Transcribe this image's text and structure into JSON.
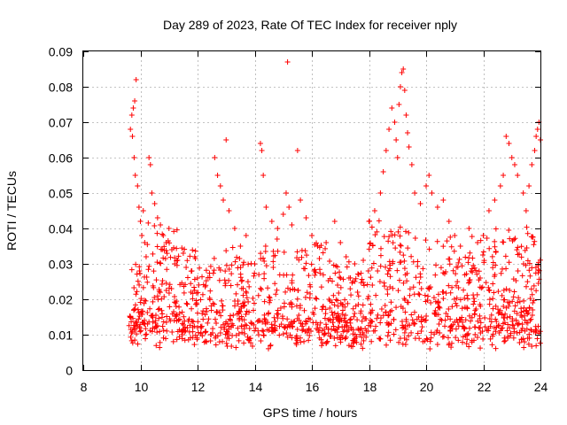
{
  "chart_data": {
    "type": "scatter",
    "title": "Day 289 of 2023, Rate Of TEC Index for receiver nply",
    "xlabel": "GPS time / hours",
    "ylabel": "ROTI / TECUs",
    "xlim": [
      8,
      24
    ],
    "ylim": [
      0,
      0.09
    ],
    "x_ticks": [
      8,
      10,
      12,
      14,
      16,
      18,
      20,
      22,
      24
    ],
    "x_tick_labels": [
      "8",
      "10",
      "12",
      "14",
      "16",
      "18",
      "20",
      "22",
      "24"
    ],
    "y_ticks": [
      0,
      0.01,
      0.02,
      0.03,
      0.04,
      0.05,
      0.06,
      0.07,
      0.08,
      0.09
    ],
    "y_tick_labels": [
      "0",
      "0.01",
      "0.02",
      "0.03",
      "0.04",
      "0.05",
      "0.06",
      "0.07",
      "0.08",
      "0.09"
    ],
    "grid": true,
    "marker": "+",
    "marker_color": "#ff0000",
    "series": [
      {
        "name": "ROTI",
        "points": [
          [
            9.65,
            0.068
          ],
          [
            9.7,
            0.072
          ],
          [
            9.75,
            0.074
          ],
          [
            9.8,
            0.076
          ],
          [
            9.85,
            0.082
          ],
          [
            9.72,
            0.066
          ],
          [
            9.78,
            0.06
          ],
          [
            9.82,
            0.055
          ],
          [
            9.9,
            0.052
          ],
          [
            9.95,
            0.046
          ],
          [
            10.0,
            0.042
          ],
          [
            10.05,
            0.038
          ],
          [
            10.1,
            0.045
          ],
          [
            10.15,
            0.036
          ],
          [
            10.2,
            0.032
          ],
          [
            10.3,
            0.06
          ],
          [
            10.35,
            0.058
          ],
          [
            10.4,
            0.05
          ],
          [
            10.5,
            0.047
          ],
          [
            10.6,
            0.043
          ],
          [
            10.7,
            0.041
          ],
          [
            10.8,
            0.038
          ],
          [
            10.9,
            0.036
          ],
          [
            11.0,
            0.04
          ],
          [
            11.1,
            0.034
          ],
          [
            11.2,
            0.03
          ],
          [
            11.3,
            0.031
          ],
          [
            11.5,
            0.033
          ],
          [
            11.6,
            0.029
          ],
          [
            11.8,
            0.028
          ],
          [
            12.0,
            0.026
          ],
          [
            11.9,
            0.032
          ],
          [
            12.6,
            0.06
          ],
          [
            12.7,
            0.055
          ],
          [
            12.8,
            0.052
          ],
          [
            12.9,
            0.048
          ],
          [
            13.0,
            0.065
          ],
          [
            13.1,
            0.045
          ],
          [
            13.3,
            0.04
          ],
          [
            13.5,
            0.035
          ],
          [
            13.7,
            0.038
          ],
          [
            14.0,
            0.03
          ],
          [
            14.2,
            0.064
          ],
          [
            14.25,
            0.062
          ],
          [
            14.3,
            0.055
          ],
          [
            14.4,
            0.046
          ],
          [
            14.6,
            0.042
          ],
          [
            14.8,
            0.04
          ],
          [
            15.0,
            0.044
          ],
          [
            15.1,
            0.05
          ],
          [
            15.15,
            0.087
          ],
          [
            15.2,
            0.046
          ],
          [
            15.3,
            0.041
          ],
          [
            15.5,
            0.062
          ],
          [
            15.6,
            0.048
          ],
          [
            15.8,
            0.043
          ],
          [
            16.0,
            0.038
          ],
          [
            16.2,
            0.035
          ],
          [
            16.5,
            0.036
          ],
          [
            16.8,
            0.042
          ],
          [
            17.0,
            0.036
          ],
          [
            17.2,
            0.032
          ],
          [
            17.5,
            0.03
          ],
          [
            17.8,
            0.031
          ],
          [
            18.0,
            0.042
          ],
          [
            18.2,
            0.045
          ],
          [
            18.4,
            0.05
          ],
          [
            18.5,
            0.056
          ],
          [
            18.6,
            0.062
          ],
          [
            18.7,
            0.068
          ],
          [
            18.8,
            0.074
          ],
          [
            18.9,
            0.07
          ],
          [
            18.95,
            0.065
          ],
          [
            19.0,
            0.06
          ],
          [
            19.05,
            0.075
          ],
          [
            19.1,
            0.08
          ],
          [
            19.15,
            0.084
          ],
          [
            19.2,
            0.085
          ],
          [
            19.25,
            0.079
          ],
          [
            19.3,
            0.072
          ],
          [
            19.35,
            0.067
          ],
          [
            19.4,
            0.063
          ],
          [
            19.5,
            0.058
          ],
          [
            19.6,
            0.05
          ],
          [
            19.8,
            0.047
          ],
          [
            20.0,
            0.052
          ],
          [
            20.1,
            0.055
          ],
          [
            20.2,
            0.05
          ],
          [
            20.4,
            0.046
          ],
          [
            20.6,
            0.048
          ],
          [
            20.8,
            0.042
          ],
          [
            21.0,
            0.038
          ],
          [
            21.2,
            0.035
          ],
          [
            21.5,
            0.04
          ],
          [
            21.8,
            0.036
          ],
          [
            22.0,
            0.038
          ],
          [
            22.2,
            0.045
          ],
          [
            22.4,
            0.048
          ],
          [
            22.6,
            0.052
          ],
          [
            22.7,
            0.055
          ],
          [
            22.8,
            0.066
          ],
          [
            22.9,
            0.064
          ],
          [
            23.0,
            0.06
          ],
          [
            23.1,
            0.058
          ],
          [
            23.2,
            0.055
          ],
          [
            23.4,
            0.05
          ],
          [
            23.6,
            0.052
          ],
          [
            23.7,
            0.058
          ],
          [
            23.8,
            0.062
          ],
          [
            23.85,
            0.066
          ],
          [
            23.9,
            0.068
          ],
          [
            23.95,
            0.07
          ],
          [
            24.0,
            0.065
          ],
          [
            23.5,
            0.045
          ],
          [
            17.3,
            0.026
          ],
          [
            16.9,
            0.024
          ],
          [
            16.6,
            0.02
          ],
          [
            16.4,
            0.018
          ],
          [
            17.6,
            0.022
          ],
          [
            18.3,
            0.028
          ]
        ]
      }
    ]
  }
}
